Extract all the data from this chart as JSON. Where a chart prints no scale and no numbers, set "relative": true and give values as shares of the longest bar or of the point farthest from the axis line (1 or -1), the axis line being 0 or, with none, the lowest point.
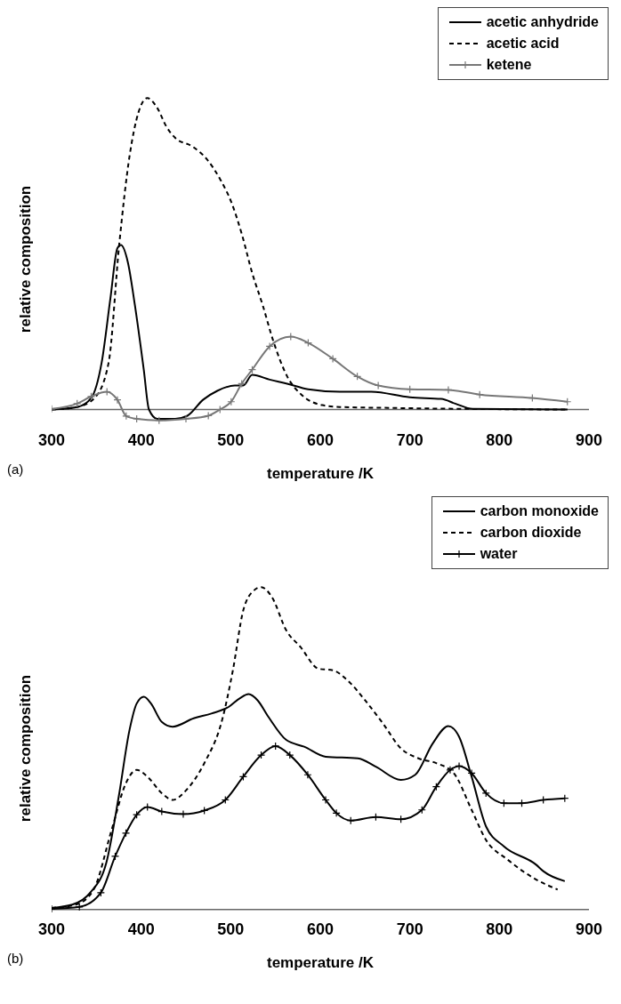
{
  "chart_data": [
    {
      "type": "line",
      "relative": true,
      "xlabel": "temperature /K",
      "ylabel": "relative composition",
      "xlim": [
        300,
        900
      ],
      "xticks": [
        300,
        400,
        500,
        600,
        700,
        800,
        900
      ],
      "legend": "top right",
      "annotations": [
        "(a)"
      ],
      "series": [
        {
          "name": "acetic anhydride",
          "color": "#000000",
          "line_style": "solid",
          "marker": "none",
          "x": [
            300,
            328.5,
            344.2,
            355.9,
            365.7,
            373.5,
            377.4,
            385.2,
            393,
            402.9,
            408.7,
            418,
            438,
            451.7,
            469,
            485,
            504.5,
            514,
            524,
            543.5,
            563,
            586.5,
            621.7,
            657,
            700,
            735,
            750.7,
            770,
            876
          ],
          "values": [
            0,
            0.008,
            0.037,
            0.151,
            0.358,
            0.518,
            0.528,
            0.472,
            0.335,
            0.128,
            0,
            -0.03,
            -0.03,
            -0.02,
            0.031,
            0.06,
            0.077,
            0.077,
            0.111,
            0.096,
            0.083,
            0.065,
            0.057,
            0.057,
            0.039,
            0.034,
            0.019,
            0.002,
            0
          ]
        },
        {
          "name": "acetic acid",
          "color": "#000000",
          "line_style": "dashed",
          "marker": "none",
          "x": [
            300,
            328.5,
            348,
            363.7,
            375.5,
            387.2,
            397,
            406.7,
            418.4,
            428.2,
            438,
            457.5,
            473.2,
            488.8,
            500.5,
            512.3,
            524,
            535.7,
            547.5,
            563.1,
            578.8,
            602.3,
            621.8,
            680.4,
            758.6,
            875.9
          ],
          "values": [
            0,
            0.008,
            0.037,
            0.151,
            0.53,
            0.817,
            0.954,
            1,
            0.966,
            0.908,
            0.872,
            0.844,
            0.804,
            0.736,
            0.667,
            0.564,
            0.438,
            0.335,
            0.22,
            0.106,
            0.048,
            0.014,
            0.008,
            0.005,
            0.002,
            0
          ]
        },
        {
          "name": "ketene",
          "color": "#777777",
          "line_style": "solid",
          "marker": "cross",
          "x": [
            300,
            328.5,
            344.2,
            361.8,
            373.5,
            383.3,
            395,
            420,
            450,
            475,
            488,
            500.5,
            512.3,
            524,
            543.5,
            567,
            586.5,
            614,
            641.3,
            664.7,
            700,
            743,
            778,
            836.8,
            875.9
          ],
          "values": [
            0.002,
            0.019,
            0.042,
            0.057,
            0.031,
            -0.021,
            -0.03,
            -0.035,
            -0.03,
            -0.02,
            0,
            0.025,
            0.083,
            0.128,
            0.203,
            0.234,
            0.214,
            0.163,
            0.106,
            0.077,
            0.065,
            0.063,
            0.048,
            0.037,
            0.025
          ]
        }
      ]
    },
    {
      "type": "line",
      "relative": true,
      "xlabel": "temperature /K",
      "ylabel": "relative composition",
      "xlim": [
        300,
        900
      ],
      "xticks": [
        300,
        400,
        500,
        600,
        700,
        800,
        900
      ],
      "legend": "top right",
      "annotations": [
        "(b)"
      ],
      "series": [
        {
          "name": "carbon monoxide",
          "color": "#000000",
          "line_style": "solid",
          "marker": "none",
          "x": [
            300,
            323,
            343,
            361,
            375,
            387,
            395,
            403,
            411,
            423,
            435,
            458.6,
            478.5,
            498,
            510,
            520,
            530,
            542,
            562,
            582,
            606,
            642,
            662,
            690,
            706,
            725.5,
            743,
            755,
            769,
            785,
            805,
            841,
            849,
            873
          ],
          "values": [
            0.005,
            0.015,
            0.052,
            0.144,
            0.351,
            0.557,
            0.639,
            0.66,
            0.639,
            0.582,
            0.567,
            0.593,
            0.608,
            0.629,
            0.655,
            0.668,
            0.649,
            0.598,
            0.526,
            0.505,
            0.474,
            0.469,
            0.443,
            0.402,
            0.418,
            0.515,
            0.569,
            0.536,
            0.412,
            0.258,
            0.196,
            0.139,
            0.119,
            0.088
          ]
        },
        {
          "name": "carbon dioxide",
          "color": "#000000",
          "line_style": "dashed",
          "marker": "none",
          "x": [
            300,
            327,
            347,
            367,
            383,
            395,
            407,
            423,
            435,
            450.6,
            470.5,
            490.4,
            502.4,
            514,
            526,
            534,
            546,
            562,
            578,
            598,
            614,
            634,
            650,
            670,
            690,
            709.6,
            729.5,
            749,
            769,
            785,
            809,
            841,
            865
          ],
          "values": [
            0.005,
            0.015,
            0.062,
            0.247,
            0.392,
            0.433,
            0.412,
            0.361,
            0.34,
            0.371,
            0.454,
            0.588,
            0.742,
            0.928,
            0.99,
            1,
            0.969,
            0.866,
            0.814,
            0.747,
            0.742,
            0.701,
            0.649,
            0.577,
            0.5,
            0.469,
            0.454,
            0.423,
            0.309,
            0.216,
            0.155,
            0.093,
            0.062
          ]
        },
        {
          "name": "water",
          "color": "#000000",
          "line_style": "solid",
          "marker": "cross",
          "x": [
            300,
            331,
            355,
            371,
            383,
            395,
            407,
            423,
            447,
            470.5,
            494,
            514,
            534,
            550,
            566,
            586,
            606,
            618,
            634,
            662,
            690,
            713.5,
            729.5,
            745,
            755,
            769,
            785,
            805,
            825,
            849,
            873
          ],
          "values": [
            0.002,
            0.008,
            0.052,
            0.165,
            0.237,
            0.294,
            0.318,
            0.304,
            0.296,
            0.307,
            0.34,
            0.412,
            0.479,
            0.507,
            0.479,
            0.418,
            0.34,
            0.299,
            0.276,
            0.287,
            0.28,
            0.309,
            0.381,
            0.433,
            0.445,
            0.423,
            0.361,
            0.33,
            0.33,
            0.34,
            0.345
          ]
        }
      ]
    }
  ]
}
